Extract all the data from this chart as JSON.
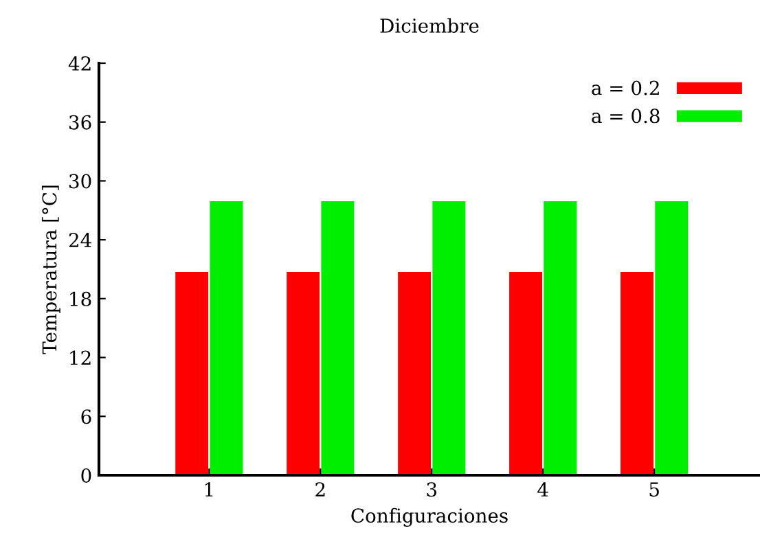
{
  "chart_data": {
    "type": "bar",
    "title": "Diciembre",
    "xlabel": "Configuraciones",
    "ylabel": "Temperatura [°C]",
    "categories": [
      "1",
      "2",
      "3",
      "4",
      "5"
    ],
    "series": [
      {
        "name": "a = 0.2",
        "color": "#ff0000",
        "values": [
          20.8,
          20.8,
          20.8,
          20.8,
          20.8
        ]
      },
      {
        "name": "a = 0.8",
        "color": "#00ee00",
        "values": [
          28,
          28,
          28,
          28,
          28
        ]
      }
    ],
    "ylim": [
      0,
      42
    ],
    "yticks": [
      0,
      6,
      12,
      18,
      24,
      30,
      36,
      42
    ],
    "grid": false,
    "legend": "top right"
  }
}
